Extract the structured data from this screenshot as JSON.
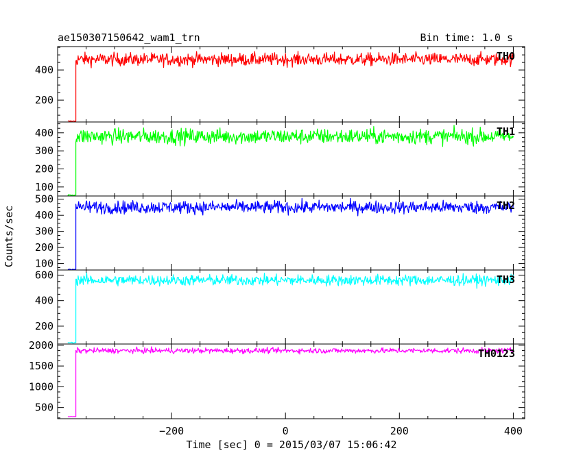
{
  "header": {
    "title": "ae150307150642_wam1_trn",
    "bin_time": "Bin time: 1.0 s"
  },
  "chart_data": {
    "type": "line",
    "xlabel": "Time [sec] 0 = 2015/03/07 15:06:42",
    "ylabel": "Counts/sec",
    "xlim": [
      -400,
      420
    ],
    "x_ticks": [
      -200,
      0,
      200,
      400
    ],
    "x_tick_labels": [
      "−200",
      "0",
      "200",
      "400"
    ],
    "grid": false,
    "series": [
      {
        "name": "TH0",
        "color": "#ff0000",
        "ylim": [
          55,
          555
        ],
        "y_ticks": [
          200,
          400
        ],
        "y_tick_labels": [
          "200",
          "400"
        ],
        "pre_x": [
          -382,
          -370
        ],
        "pre_level": 60,
        "onset_x": -368,
        "level": 470,
        "noise": 30,
        "x_start": -368,
        "x_end": 400
      },
      {
        "name": "TH1",
        "color": "#00ff00",
        "ylim": [
          50,
          460
        ],
        "y_ticks": [
          100,
          200,
          300,
          400
        ],
        "y_tick_labels": [
          "100",
          "200",
          "300",
          "400"
        ],
        "pre_x": [
          -382,
          -370
        ],
        "pre_level": 55,
        "onset_x": -368,
        "level": 380,
        "noise": 30,
        "x_start": -368,
        "x_end": 400
      },
      {
        "name": "TH2",
        "color": "#0000ff",
        "ylim": [
          60,
          520
        ],
        "y_ticks": [
          100,
          200,
          300,
          400,
          500
        ],
        "y_tick_labels": [
          "100",
          "200",
          "300",
          "400",
          "500"
        ],
        "pre_x": [
          -382,
          -370
        ],
        "pre_level": 65,
        "onset_x": -368,
        "level": 450,
        "noise": 28,
        "x_start": -368,
        "x_end": 400
      },
      {
        "name": "TH3",
        "color": "#00ffff",
        "ylim": [
          60,
          640
        ],
        "y_ticks": [
          200,
          400,
          600
        ],
        "y_tick_labels": [
          "200",
          "400",
          "600"
        ],
        "pre_x": [
          -382,
          -370
        ],
        "pre_level": 70,
        "onset_x": -368,
        "level": 560,
        "noise": 30,
        "x_start": -368,
        "x_end": 400
      },
      {
        "name": "TH0123",
        "color": "#ff00ff",
        "ylim": [
          230,
          2030
        ],
        "y_ticks": [
          500,
          1000,
          1500,
          2000
        ],
        "y_tick_labels": [
          "500",
          "1000",
          "1500",
          "2000"
        ],
        "pre_x": [
          -382,
          -370
        ],
        "pre_level": 280,
        "onset_x": -368,
        "level": 1870,
        "noise": 45,
        "x_start": -368,
        "x_end": 400
      }
    ]
  }
}
